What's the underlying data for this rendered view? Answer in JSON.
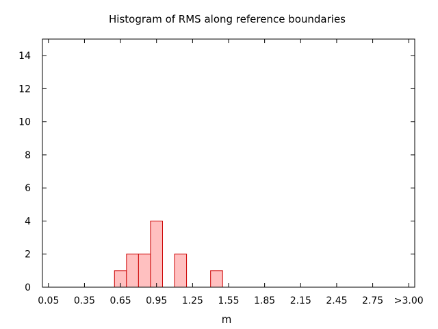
{
  "chart_data": {
    "type": "bar",
    "title": "Histogram of RMS along reference boundaries",
    "xlabel": "m",
    "ylabel": "",
    "ylim": [
      0,
      15
    ],
    "yticks": [
      0,
      2,
      4,
      6,
      8,
      10,
      12,
      14
    ],
    "xlim": [
      0.0,
      3.1
    ],
    "xticks": [
      {
        "value": 0.05,
        "label": "0.05"
      },
      {
        "value": 0.35,
        "label": "0.35"
      },
      {
        "value": 0.65,
        "label": "0.65"
      },
      {
        "value": 0.95,
        "label": "0.95"
      },
      {
        "value": 1.25,
        "label": "1.25"
      },
      {
        "value": 1.55,
        "label": "1.55"
      },
      {
        "value": 1.85,
        "label": "1.85"
      },
      {
        "value": 2.15,
        "label": "2.15"
      },
      {
        "value": 2.45,
        "label": "2.45"
      },
      {
        "value": 2.75,
        "label": "2.75"
      },
      {
        "value": 3.05,
        "label": ">3.00"
      }
    ],
    "bin_width": 0.1,
    "bins": [
      {
        "start": 0.6,
        "end": 0.7,
        "count": 1
      },
      {
        "start": 0.7,
        "end": 0.8,
        "count": 2
      },
      {
        "start": 0.8,
        "end": 0.9,
        "count": 2
      },
      {
        "start": 0.9,
        "end": 1.0,
        "count": 4
      },
      {
        "start": 1.1,
        "end": 1.2,
        "count": 2
      },
      {
        "start": 1.4,
        "end": 1.5,
        "count": 1
      }
    ],
    "grid": false,
    "colors": {
      "bar_fill": "#ffc0c0",
      "bar_stroke": "#cc0000"
    }
  }
}
